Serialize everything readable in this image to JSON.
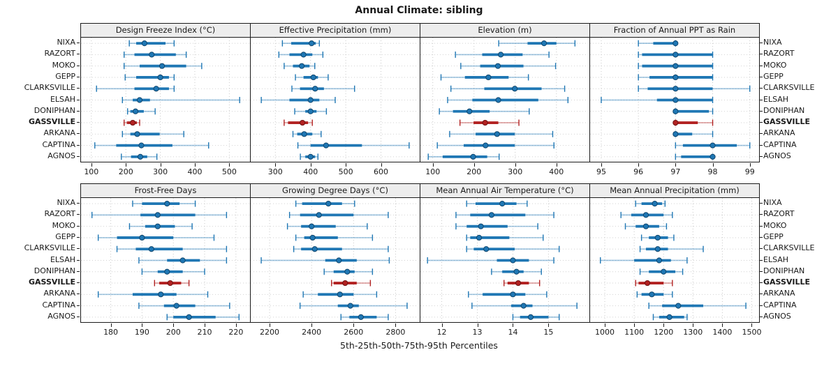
{
  "title": "Annual Climate: sibling",
  "footer": "5th-25th-50th-75th-95th Percentiles",
  "locations": [
    "NIXA",
    "RAZORT",
    "MOKO",
    "GEPP",
    "CLARKSVILLE",
    "ELSAH",
    "DONIPHAN",
    "GASSVILLE",
    "ARKANA",
    "CAPTINA",
    "AGNOS"
  ],
  "highlight_location": "GASSVILLE",
  "percentiles": [
    5,
    25,
    50,
    75,
    95
  ],
  "colors": {
    "blue": "#1f77b4",
    "blue_light": "rgba(31,119,180,0.42)",
    "blue_dark": "#10456b",
    "red": "#b22222",
    "red_light": "rgba(178,34,34,0.45)",
    "red_dark": "#6e1414",
    "grid": "#c9c9c9",
    "row_guide": "#d2d2d2",
    "panel_border": "#1b1b1b",
    "header_bg": "#ededed",
    "text": "#1a1a1a"
  },
  "chart_data": [
    {
      "type": "dot-whisker",
      "title": "Design Freeze Index (°C)",
      "xlim": [
        70,
        560
      ],
      "ticks": [
        100,
        200,
        300,
        400,
        500
      ],
      "values": [
        [
          210,
          230,
          254,
          315,
          340
        ],
        [
          195,
          225,
          275,
          345,
          375
        ],
        [
          195,
          240,
          305,
          375,
          420
        ],
        [
          198,
          230,
          300,
          325,
          340
        ],
        [
          115,
          225,
          288,
          325,
          340
        ],
        [
          190,
          220,
          240,
          270,
          530
        ],
        [
          205,
          213,
          228,
          252,
          285
        ],
        [
          195,
          203,
          220,
          232,
          240
        ],
        [
          190,
          213,
          233,
          298,
          368
        ],
        [
          110,
          172,
          245,
          335,
          440
        ],
        [
          187,
          215,
          242,
          262,
          290
        ]
      ]
    },
    {
      "type": "dot-whisker",
      "title": "Effective Precipitation (mm)",
      "xlim": [
        230,
        710
      ],
      "ticks": [
        300,
        400,
        500,
        600
      ],
      "values": [
        [
          320,
          345,
          403,
          415,
          425
        ],
        [
          310,
          340,
          380,
          405,
          435
        ],
        [
          325,
          350,
          375,
          397,
          412
        ],
        [
          357,
          380,
          408,
          421,
          450
        ],
        [
          347,
          370,
          413,
          438,
          525
        ],
        [
          260,
          340,
          400,
          425,
          470
        ],
        [
          355,
          385,
          400,
          417,
          445
        ],
        [
          325,
          336,
          377,
          393,
          405
        ],
        [
          350,
          362,
          382,
          405,
          430
        ],
        [
          364,
          400,
          444,
          546,
          680
        ],
        [
          371,
          385,
          400,
          413,
          421
        ]
      ]
    },
    {
      "type": "dot-whisker",
      "title": "Elevation (m)",
      "xlim": [
        70,
        480
      ],
      "ticks": [
        100,
        200,
        300,
        400
      ],
      "values": [
        [
          260,
          330,
          370,
          400,
          445
        ],
        [
          155,
          220,
          265,
          318,
          382
        ],
        [
          168,
          215,
          258,
          320,
          398
        ],
        [
          120,
          178,
          235,
          284,
          332
        ],
        [
          144,
          225,
          299,
          364,
          420
        ],
        [
          136,
          196,
          259,
          356,
          428
        ],
        [
          116,
          149,
          189,
          238,
          334
        ],
        [
          166,
          199,
          227,
          259,
          309
        ],
        [
          141,
          204,
          256,
          299,
          391
        ],
        [
          111,
          175,
          228,
          299,
          394
        ],
        [
          89,
          124,
          198,
          232,
          261
        ]
      ]
    },
    {
      "type": "dot-whisker",
      "title": "Fraction of Annual PPT as Rain",
      "xlim": [
        94.7,
        99.25
      ],
      "ticks": [
        95,
        96,
        97,
        98,
        99
      ],
      "values": [
        [
          96,
          96.4,
          97,
          97,
          97
        ],
        [
          96,
          96.1,
          97,
          98,
          98
        ],
        [
          96,
          96.1,
          97,
          98,
          98
        ],
        [
          96,
          96.3,
          97,
          98,
          98
        ],
        [
          96,
          96.25,
          97,
          98,
          99
        ],
        [
          95,
          96.5,
          97,
          98,
          98
        ],
        [
          97,
          97,
          97,
          97.9,
          98
        ],
        [
          97,
          97,
          97,
          97.6,
          98
        ],
        [
          97,
          97,
          97,
          97.45,
          98
        ],
        [
          97,
          97.2,
          98,
          98.65,
          99
        ],
        [
          97,
          97.15,
          98,
          98,
          98
        ]
      ]
    },
    {
      "type": "dot-whisker",
      "title": "Frost-Free Days",
      "xlim": [
        170.5,
        224.5
      ],
      "ticks": [
        180,
        190,
        200,
        210,
        220
      ],
      "values": [
        [
          187,
          190,
          198,
          202,
          207
        ],
        [
          174,
          189.5,
          195,
          207,
          217
        ],
        [
          186,
          191,
          195,
          200.5,
          206
        ],
        [
          176,
          182,
          190,
          200,
          213
        ],
        [
          182,
          188,
          193,
          203,
          217
        ],
        [
          189,
          198,
          203,
          208.5,
          217
        ],
        [
          190,
          195,
          198,
          203,
          210
        ],
        [
          194,
          195.5,
          199,
          202.5,
          205
        ],
        [
          176,
          187,
          196,
          201,
          211
        ],
        [
          189,
          197,
          201,
          207,
          218
        ],
        [
          198,
          200,
          205,
          213.5,
          221
        ]
      ]
    },
    {
      "type": "dot-whisker",
      "title": "Growing Degree Days (°C)",
      "xlim": [
        2110,
        2915
      ],
      "ticks": [
        2200,
        2400,
        2600,
        2800
      ],
      "values": [
        [
          2325,
          2355,
          2480,
          2545,
          2605
        ],
        [
          2295,
          2345,
          2435,
          2600,
          2765
        ],
        [
          2285,
          2350,
          2400,
          2515,
          2665
        ],
        [
          2325,
          2365,
          2405,
          2525,
          2690
        ],
        [
          2315,
          2350,
          2415,
          2545,
          2765
        ],
        [
          2160,
          2465,
          2530,
          2615,
          2770
        ],
        [
          2460,
          2505,
          2570,
          2605,
          2690
        ],
        [
          2495,
          2505,
          2560,
          2615,
          2680
        ],
        [
          2360,
          2430,
          2535,
          2600,
          2710
        ],
        [
          2345,
          2525,
          2585,
          2625,
          2855
        ],
        [
          2540,
          2580,
          2635,
          2710,
          2765
        ]
      ]
    },
    {
      "type": "dot-whisker",
      "title": "Mean Annual Air Temperature (°C)",
      "xlim": [
        11.4,
        16.15
      ],
      "ticks": [
        12,
        13,
        14,
        15
      ],
      "values": [
        [
          12.7,
          12.95,
          13.7,
          14.1,
          14.4
        ],
        [
          12.4,
          12.8,
          13.4,
          14.35,
          15.15
        ],
        [
          12.4,
          12.7,
          13.1,
          13.85,
          14.7
        ],
        [
          12.7,
          12.8,
          13.05,
          13.9,
          14.85
        ],
        [
          12.7,
          12.9,
          13.25,
          14.05,
          15.3
        ],
        [
          11.6,
          13.55,
          14.0,
          14.45,
          15.15
        ],
        [
          13.4,
          13.7,
          14.1,
          14.3,
          14.8
        ],
        [
          13.75,
          13.85,
          14.15,
          14.45,
          14.75
        ],
        [
          12.75,
          13.15,
          14.0,
          14.35,
          14.95
        ],
        [
          12.85,
          13.95,
          14.3,
          14.55,
          15.8
        ],
        [
          14.0,
          14.2,
          14.5,
          15.0,
          15.3
        ]
      ]
    },
    {
      "type": "dot-whisker",
      "title": "Mean Annual Precipitation (mm)",
      "xlim": [
        950,
        1525
      ],
      "ticks": [
        1000,
        1100,
        1200,
        1300,
        1400,
        1500
      ],
      "values": [
        [
          1105,
          1125,
          1170,
          1195,
          1205
        ],
        [
          1055,
          1090,
          1140,
          1200,
          1230
        ],
        [
          1070,
          1105,
          1140,
          1185,
          1210
        ],
        [
          1125,
          1150,
          1180,
          1215,
          1235
        ],
        [
          1120,
          1140,
          1180,
          1215,
          1335
        ],
        [
          985,
          1100,
          1185,
          1225,
          1280
        ],
        [
          1120,
          1150,
          1200,
          1240,
          1265
        ],
        [
          1105,
          1115,
          1145,
          1200,
          1230
        ],
        [
          1110,
          1125,
          1160,
          1200,
          1230
        ],
        [
          1150,
          1195,
          1250,
          1335,
          1480
        ],
        [
          1165,
          1185,
          1220,
          1270,
          1280
        ]
      ]
    }
  ]
}
